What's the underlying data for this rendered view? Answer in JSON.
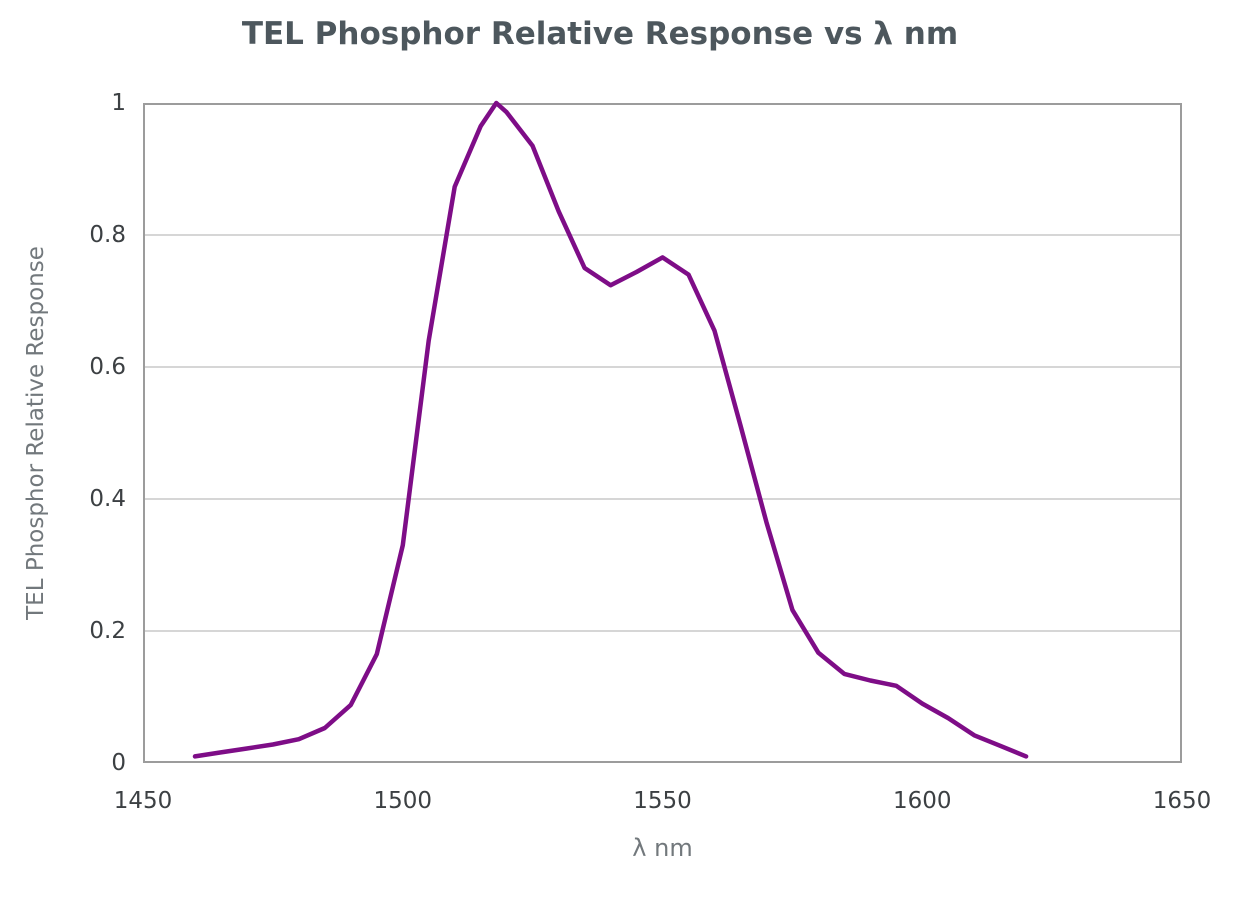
{
  "colors": {
    "line": "#7E0D87",
    "title_text": "#4D575D",
    "tick_text": "#3C4043",
    "axis_title_text": "#72787C",
    "gridline": "#D6D6D6",
    "plot_border": "#9C9C9C",
    "background": "#FFFFFF"
  },
  "chart_data": {
    "type": "line",
    "title": "TEL Phosphor Relative Response vs λ nm",
    "xlabel": "λ nm",
    "ylabel": "TEL Phosphor Relative Response",
    "xlim": [
      1450,
      1650
    ],
    "ylim": [
      0,
      1
    ],
    "x_ticks": [
      1450,
      1500,
      1550,
      1600,
      1650
    ],
    "y_ticks": [
      0,
      0.2,
      0.4,
      0.6,
      0.8,
      1
    ],
    "y_tick_labels": [
      "0",
      "0.2",
      "0.4",
      "0.6",
      "0.8",
      "1"
    ],
    "grid": "horizontal",
    "legend": "none",
    "series": [
      {
        "name": "TEL Phosphor Relative Response",
        "color": "#7E0D87",
        "x": [
          1460,
          1465,
          1470,
          1475,
          1480,
          1485,
          1490,
          1495,
          1500,
          1505,
          1510,
          1515,
          1518,
          1520,
          1525,
          1530,
          1535,
          1540,
          1545,
          1550,
          1555,
          1560,
          1565,
          1570,
          1575,
          1580,
          1585,
          1590,
          1595,
          1600,
          1605,
          1610,
          1615,
          1620
        ],
        "y": [
          0.01,
          0.016,
          0.022,
          0.028,
          0.036,
          0.053,
          0.088,
          0.165,
          0.33,
          0.64,
          0.873,
          0.965,
          1.0,
          0.986,
          0.935,
          0.836,
          0.75,
          0.724,
          0.744,
          0.766,
          0.74,
          0.655,
          0.512,
          0.365,
          0.232,
          0.167,
          0.135,
          0.125,
          0.117,
          0.09,
          0.068,
          0.042,
          0.026,
          0.01
        ]
      }
    ]
  }
}
